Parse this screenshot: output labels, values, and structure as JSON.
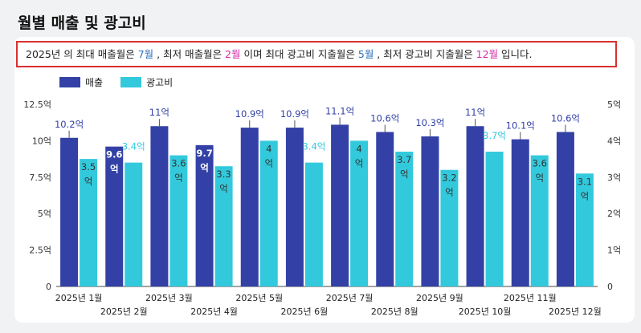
{
  "page": {
    "title": "월별 매출 및 광고비"
  },
  "summary": {
    "p1": "2025년  의 최대 매출월은 ",
    "max_sales_month": "7월",
    "p2": " , 최저 매출월은 ",
    "min_sales_month": "2월",
    "p3": " 이며 최대 광고비 지출월은 ",
    "max_ad_month": "5월",
    "p4": " , 최저 광고비 지출월은 ",
    "min_ad_month": "12월",
    "p5": " 입니다.",
    "accent_blue": "#2f6fb8",
    "accent_pink": "#d62aa8"
  },
  "legend": {
    "sales": "매출",
    "ads": "광고비"
  },
  "chart_data": {
    "type": "bar",
    "categories": [
      "2025년 1월",
      "2025년 2월",
      "2025년 3월",
      "2025년 4월",
      "2025년 5월",
      "2025년 6월",
      "2025년 7월",
      "2025년 8월",
      "2025년 9월",
      "2025년 10월",
      "2025년 11월",
      "2025년 12월"
    ],
    "series": [
      {
        "name": "매출",
        "axis": "left",
        "color": "#3341a6",
        "values": [
          10.2,
          9.6,
          11,
          9.7,
          10.9,
          10.9,
          11.1,
          10.6,
          10.3,
          11,
          10.1,
          10.6
        ],
        "labels": [
          "10.2억",
          "9.6억",
          "11억",
          "9.7억",
          "10.9억",
          "10.9억",
          "11.1억",
          "10.6억",
          "10.3억",
          "11억",
          "10.1억",
          "10.6억"
        ]
      },
      {
        "name": "광고비",
        "axis": "right",
        "color": "#33c9dc",
        "values": [
          3.5,
          3.4,
          3.6,
          3.3,
          4,
          3.4,
          4,
          3.7,
          3.2,
          3.7,
          3.6,
          3.1
        ],
        "labels": [
          "3.5억",
          "3.4억",
          "3.6억",
          "3.3억",
          "4억",
          "3.4억",
          "4억",
          "3.7억",
          "3.2억",
          "3.7억",
          "3.6억",
          "3.1억"
        ]
      }
    ],
    "y_left": {
      "ylim": [
        0,
        12.5
      ],
      "ticks": [
        "0",
        "2.5억",
        "5억",
        "7.5억",
        "10억",
        "12.5억"
      ]
    },
    "y_right": {
      "ylim": [
        0,
        5
      ],
      "ticks": [
        "0",
        "1억",
        "2억",
        "3억",
        "4억",
        "5억"
      ]
    },
    "grid": false,
    "legend_position": "top-left"
  }
}
